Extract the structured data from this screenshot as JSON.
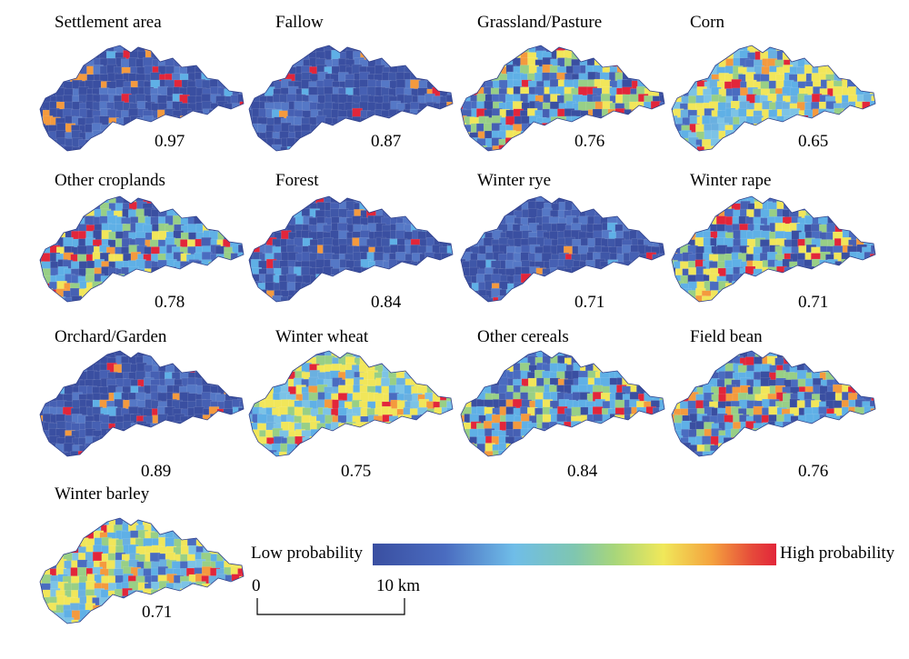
{
  "figure": {
    "colors": {
      "low": "#3a4fa1",
      "mid_blue": "#5fb0e6",
      "mid_green": "#98cf86",
      "mid_yellow": "#f1e65a",
      "orange": "#f49a3e",
      "high": "#e2263a"
    }
  },
  "maps": [
    {
      "id": "settlement-area",
      "title": "Settlement area",
      "score": "0.97",
      "dominant": "low",
      "hot_share": 0.1,
      "warm_share": 0.05
    },
    {
      "id": "fallow",
      "title": "Fallow",
      "score": "0.87",
      "dominant": "low",
      "hot_share": 0.04,
      "warm_share": 0.06
    },
    {
      "id": "grassland-pasture",
      "title": "Grassland/Pasture",
      "score": "0.76",
      "dominant": "mixed",
      "hot_share": 0.14,
      "warm_share": 0.3
    },
    {
      "id": "corn",
      "title": "Corn",
      "score": "0.65",
      "dominant": "mid",
      "hot_share": 0.1,
      "warm_share": 0.45
    },
    {
      "id": "other-croplands",
      "title": "Other croplands",
      "score": "0.78",
      "dominant": "mixed",
      "hot_share": 0.1,
      "warm_share": 0.25
    },
    {
      "id": "forest",
      "title": "Forest",
      "score": "0.84",
      "dominant": "low",
      "hot_share": 0.06,
      "warm_share": 0.2
    },
    {
      "id": "winter-rye",
      "title": "Winter rye",
      "score": "0.71",
      "dominant": "low",
      "hot_share": 0.03,
      "warm_share": 0.08
    },
    {
      "id": "winter-rape",
      "title": "Winter rape",
      "score": "0.71",
      "dominant": "mixed",
      "hot_share": 0.1,
      "warm_share": 0.35
    },
    {
      "id": "orchard-garden",
      "title": "Orchard/Garden",
      "score": "0.89",
      "dominant": "low",
      "hot_share": 0.08,
      "warm_share": 0.05
    },
    {
      "id": "winter-wheat",
      "title": "Winter wheat",
      "score": "0.75",
      "dominant": "mid",
      "hot_share": 0.08,
      "warm_share": 0.45
    },
    {
      "id": "other-cereals",
      "title": "Other cereals",
      "score": "0.84",
      "dominant": "mixed",
      "hot_share": 0.12,
      "warm_share": 0.25
    },
    {
      "id": "field-bean",
      "title": "Field bean",
      "score": "0.76",
      "dominant": "mixed",
      "hot_share": 0.12,
      "warm_share": 0.15
    },
    {
      "id": "winter-barley",
      "title": "Winter barley",
      "score": "0.71",
      "dominant": "mid",
      "hot_share": 0.1,
      "warm_share": 0.4
    }
  ],
  "legend": {
    "low_label": "Low probability",
    "high_label": "High probability"
  },
  "scale": {
    "start_label": "0",
    "end_label": "10 km"
  }
}
